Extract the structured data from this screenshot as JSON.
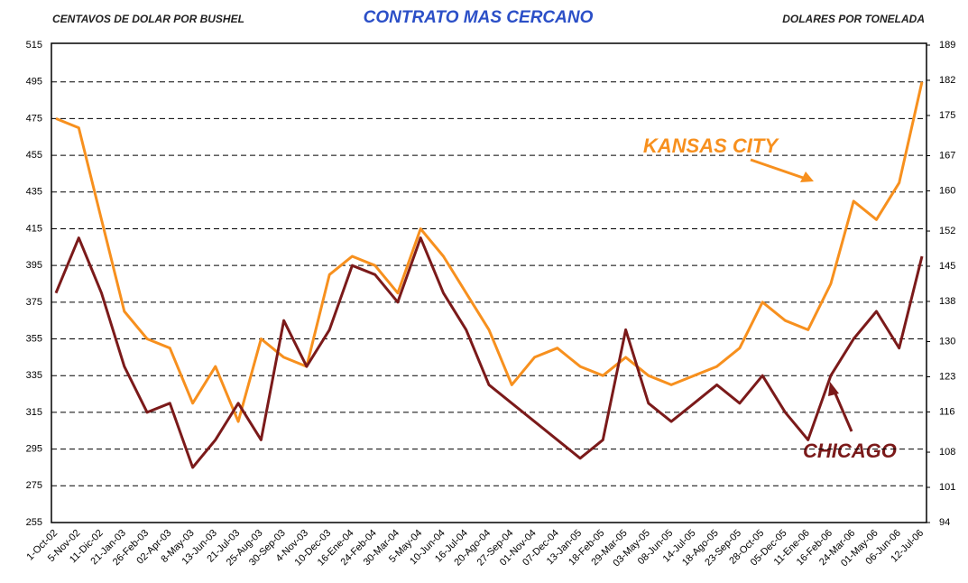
{
  "chart_data": {
    "type": "line",
    "title": "CONTRATO MAS CERCANO",
    "y_label": "CENTAVOS DE DOLAR POR BUSHEL",
    "y2_label": "DOLARES POR TONELADA",
    "annotations": [
      "KANSAS CITY",
      "CHICAGO"
    ],
    "categories": [
      "1-Oct-02",
      "5-Nov-02",
      "11-Dic-02",
      "21-Jan-03",
      "26-Feb-03",
      "02-Apr-03",
      "8-May-03",
      "13-Jun-03",
      "21-Jul-03",
      "25-Aug-03",
      "30-Sep-03",
      "4-Nov-03",
      "10-Dec-03",
      "16-Ene-04",
      "24-Feb-04",
      "30-Mar-04",
      "5-May-04",
      "10-Jun-04",
      "16-Jul-04",
      "20-Ago-04",
      "27-Sep-04",
      "01-Nov-04",
      "07-Dec-04",
      "13-Jan-05",
      "18-Feb-05",
      "29-Mar-05",
      "03-May-05",
      "08-Jun-05",
      "14-Jul-05",
      "18-Ago-05",
      "23-Sep-05",
      "28-Oct-05",
      "05-Dec-05",
      "11-Ene-06",
      "16-Feb-06",
      "24-Mar-06",
      "01-May-06",
      "06-Jun-06",
      "12-Jul-06"
    ],
    "series": [
      {
        "name": "KANSAS CITY",
        "color": "#f7901e",
        "values": [
          475,
          470,
          420,
          370,
          355,
          350,
          320,
          340,
          310,
          355,
          345,
          340,
          390,
          400,
          395,
          380,
          415,
          400,
          380,
          360,
          330,
          345,
          350,
          340,
          335,
          345,
          335,
          330,
          335,
          340,
          350,
          375,
          365,
          360,
          385,
          430,
          420,
          440,
          495
        ]
      },
      {
        "name": "CHICAGO",
        "color": "#7b1a1a",
        "values": [
          380,
          410,
          380,
          340,
          315,
          320,
          285,
          300,
          320,
          300,
          365,
          340,
          360,
          395,
          390,
          375,
          410,
          380,
          360,
          330,
          320,
          310,
          300,
          290,
          300,
          360,
          320,
          310,
          320,
          330,
          320,
          335,
          315,
          300,
          335,
          355,
          370,
          350,
          400
        ]
      }
    ],
    "ylim": [
      255,
      515
    ],
    "yticks": [
      255,
      275,
      295,
      315,
      335,
      355,
      375,
      395,
      415,
      435,
      455,
      475,
      495,
      515
    ],
    "y2lim": [
      94,
      189
    ],
    "y2ticks": [
      94,
      101,
      108,
      116,
      123,
      130,
      138,
      145,
      152,
      160,
      167,
      175,
      182,
      189
    ],
    "grid": true
  }
}
